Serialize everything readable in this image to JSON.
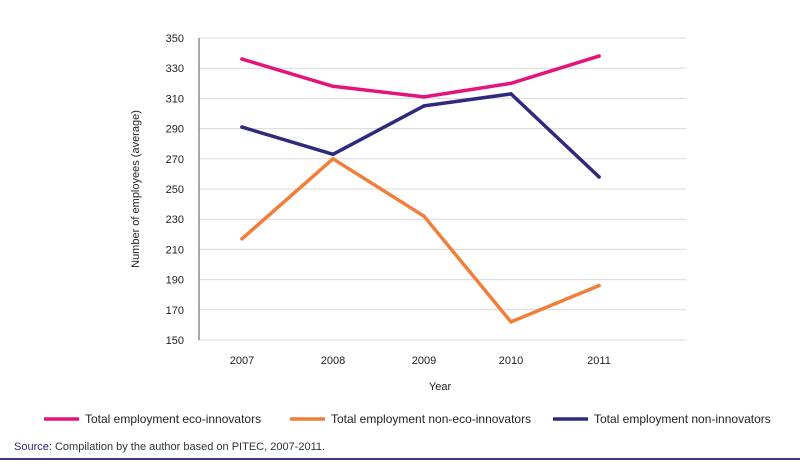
{
  "chart_data": {
    "type": "line",
    "categories": [
      "2007",
      "2008",
      "2009",
      "2010",
      "2011"
    ],
    "ylabel": "Number of employees (average)",
    "xlabel": "Year",
    "ylim": [
      150,
      350
    ],
    "yticks": [
      150,
      170,
      190,
      210,
      230,
      250,
      270,
      290,
      310,
      330,
      350
    ],
    "grid": "horizontal",
    "legend_position": "bottom",
    "series": [
      {
        "name": "Total employment eco-innovators",
        "color": "#e3157d",
        "values": [
          336,
          318,
          311,
          320,
          338
        ]
      },
      {
        "name": "Total employment non-eco-innovators",
        "color": "#f07f3c",
        "values": [
          217,
          270,
          232,
          162,
          186
        ]
      },
      {
        "name": "Total employment non-innovators",
        "color": "#2f2a7e",
        "values": [
          291,
          273,
          305,
          313,
          258
        ]
      }
    ]
  },
  "source": {
    "label": "Source:",
    "text": " Compilation by the author based on PITEC, 2007-2011."
  },
  "colors": {
    "accent": "#2f2a7e",
    "rule": "#3b3a8a"
  }
}
